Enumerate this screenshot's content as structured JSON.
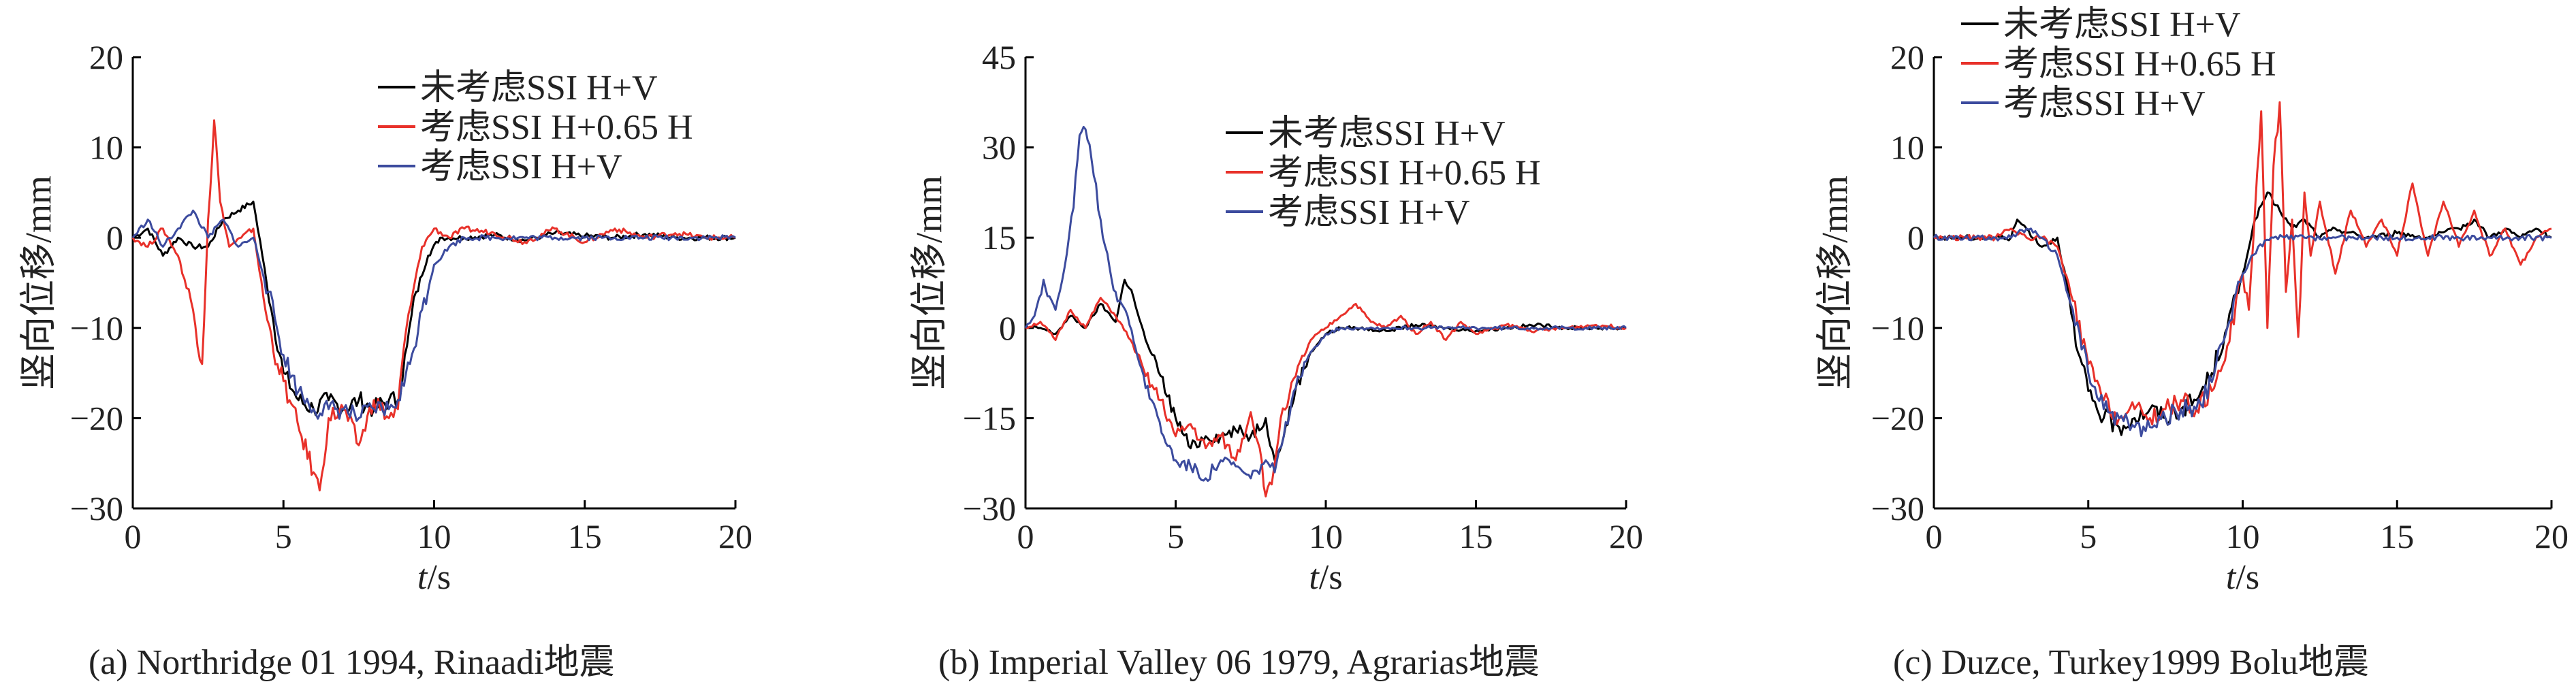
{
  "chart_data": [
    {
      "type": "line",
      "caption": "(a) Northridge 01 1994,  Rinaadi地震",
      "xlabel_italic": "t",
      "xlabel_unit": "/s",
      "ylabel": "竖向位移/mm",
      "xlim": [
        0,
        20
      ],
      "ylim": [
        -30,
        20
      ],
      "xticks": [
        "0",
        "5",
        "10",
        "15",
        "20"
      ],
      "yticks": [
        "20",
        "10",
        "0",
        "−10",
        "−20",
        "−30"
      ],
      "legend_position": "top-right",
      "grid": false,
      "series": [
        {
          "name": "未考虑SSI H+V",
          "color": "#000000",
          "x": [
            0,
            0.5,
            1.0,
            1.5,
            2.0,
            2.5,
            3.0,
            3.5,
            4.0,
            4.3,
            4.6,
            5.0,
            5.5,
            6.0,
            6.5,
            7.0,
            7.5,
            8.0,
            8.5,
            8.8,
            9.1,
            9.4,
            9.8,
            10.2,
            11,
            12,
            13,
            14,
            15,
            16,
            17,
            18,
            19,
            20
          ],
          "values": [
            0,
            1,
            -2,
            0,
            -1,
            -1,
            2,
            3,
            4,
            -2,
            -8,
            -15,
            -18,
            -19,
            -18,
            -19,
            -18,
            -19,
            -18,
            -18,
            -12,
            -6,
            -2,
            0,
            0,
            0.3,
            -0.3,
            0.5,
            0.2,
            0,
            0.4,
            0,
            0,
            0
          ]
        },
        {
          "name": "考虑SSI H+0.65 H",
          "color": "#e8312a",
          "x": [
            0,
            0.5,
            1.0,
            1.5,
            2.0,
            2.3,
            2.5,
            2.7,
            2.9,
            3.2,
            3.6,
            4.0,
            4.4,
            4.8,
            5.2,
            5.6,
            6.0,
            6.2,
            6.5,
            7.0,
            7.5,
            8.0,
            8.5,
            8.8,
            9.0,
            9.3,
            9.6,
            10.0,
            10.5,
            11,
            12,
            13,
            14,
            15,
            16,
            17,
            18,
            19,
            20
          ],
          "values": [
            0,
            -1,
            1,
            -2,
            -8,
            -14,
            2,
            13,
            4,
            -1,
            0,
            1,
            -8,
            -14,
            -18,
            -22,
            -26,
            -28,
            -20,
            -19,
            -23,
            -18,
            -20,
            -19,
            -12,
            -6,
            -1,
            1,
            0,
            1,
            0.5,
            -0.5,
            1,
            -0.5,
            1,
            0,
            0.5,
            0,
            0
          ]
        },
        {
          "name": "考虑SSI H+V",
          "color": "#3c4b9e",
          "x": [
            0,
            0.5,
            1.0,
            1.5,
            2.0,
            2.5,
            3.0,
            3.5,
            4.0,
            4.5,
            5.0,
            5.5,
            6.0,
            6.5,
            7.0,
            7.5,
            8.0,
            8.5,
            8.8,
            9.2,
            9.6,
            10.0,
            10.5,
            11,
            12,
            13,
            14,
            15,
            16,
            17,
            18,
            19,
            20
          ],
          "values": [
            0,
            2,
            -1,
            1,
            3,
            0,
            2,
            -1,
            0,
            -6,
            -13,
            -17,
            -19,
            -19,
            -19,
            -20,
            -19,
            -19,
            -18,
            -14,
            -8,
            -3,
            -1,
            0,
            0,
            0,
            0,
            0,
            0,
            0,
            0,
            0,
            0
          ]
        }
      ]
    },
    {
      "type": "line",
      "caption": "(b) Imperial Valley 06 1979, Agrarias地震",
      "xlabel_italic": "t",
      "xlabel_unit": "/s",
      "ylabel": "竖向位移/mm",
      "xlim": [
        0,
        20
      ],
      "ylim": [
        -30,
        45
      ],
      "xticks": [
        "0",
        "5",
        "10",
        "15",
        "20"
      ],
      "yticks": [
        "45",
        "30",
        "15",
        "0",
        "−15",
        "−30"
      ],
      "legend_position": "top-right",
      "grid": false,
      "series": [
        {
          "name": "未考虑SSI H+V",
          "color": "#000000",
          "x": [
            0,
            0.5,
            1.0,
            1.5,
            2.0,
            2.5,
            3.0,
            3.3,
            3.6,
            4.0,
            4.5,
            5.0,
            5.5,
            6.0,
            6.5,
            7.0,
            7.5,
            8.0,
            8.3,
            8.6,
            9.0,
            9.5,
            10.0,
            10.5,
            11,
            12,
            13,
            14,
            15,
            16,
            17,
            18,
            19,
            20
          ],
          "values": [
            0,
            0,
            -1,
            2,
            0,
            4,
            1,
            8,
            5,
            -2,
            -8,
            -15,
            -20,
            -18,
            -18,
            -17,
            -18,
            -15,
            -22,
            -18,
            -10,
            -4,
            -1,
            0,
            0,
            -0.5,
            0.5,
            0,
            -0.5,
            0,
            0.5,
            0,
            0,
            0
          ]
        },
        {
          "name": "考虑SSI H+0.65 H",
          "color": "#e8312a",
          "x": [
            0,
            0.5,
            1.0,
            1.5,
            2.0,
            2.5,
            3.0,
            3.5,
            4.0,
            4.5,
            5.0,
            5.5,
            6.0,
            6.5,
            7.0,
            7.5,
            7.8,
            8.0,
            8.2,
            8.5,
            9.0,
            9.5,
            10.0,
            10.5,
            11.0,
            11.5,
            12,
            12.5,
            13,
            13.5,
            14,
            14.5,
            15,
            16,
            17,
            18,
            19,
            20
          ],
          "values": [
            0,
            1,
            -2,
            3,
            0,
            5,
            2,
            -2,
            -8,
            -12,
            -18,
            -16,
            -20,
            -18,
            -22,
            -14,
            -20,
            -28,
            -26,
            -15,
            -8,
            -2,
            0,
            2,
            4,
            1,
            0,
            2,
            -1,
            1,
            -2,
            1,
            -1,
            0.5,
            -0.5,
            0,
            0.5,
            0
          ]
        },
        {
          "name": "考虑SSI H+V",
          "color": "#3c4b9e",
          "x": [
            0,
            0.3,
            0.6,
            1.0,
            1.3,
            1.6,
            1.8,
            2.0,
            2.2,
            2.5,
            2.8,
            3.0,
            3.4,
            3.8,
            4.2,
            4.6,
            5.0,
            5.5,
            6.0,
            6.5,
            7.0,
            7.5,
            8.0,
            8.3,
            8.6,
            9.0,
            9.5,
            10.0,
            10.5,
            11,
            12,
            13,
            14,
            15,
            16,
            17,
            18,
            19,
            20
          ],
          "values": [
            0,
            2,
            8,
            3,
            10,
            20,
            32,
            33,
            28,
            18,
            10,
            6,
            2,
            -6,
            -12,
            -18,
            -22,
            -23,
            -25,
            -22,
            -23,
            -25,
            -22,
            -24,
            -18,
            -10,
            -4,
            -1,
            0,
            0,
            0,
            0,
            0,
            0,
            0,
            0,
            0,
            0,
            0
          ]
        }
      ]
    },
    {
      "type": "line",
      "caption": "(c) Duzce, Turkey1999 Bolu地震",
      "xlabel_italic": "t",
      "xlabel_unit": "/s",
      "ylabel": "竖向位移/mm",
      "xlim": [
        0,
        20
      ],
      "ylim": [
        -30,
        20
      ],
      "xticks": [
        "0",
        "5",
        "10",
        "15",
        "20"
      ],
      "yticks": [
        "20",
        "10",
        "0",
        "−10",
        "−20",
        "−30"
      ],
      "legend_position": "top-left",
      "grid": false,
      "series": [
        {
          "name": "未考虑SSI H+V",
          "color": "#000000",
          "x": [
            0,
            1,
            2,
            2.5,
            2.7,
            3.0,
            3.5,
            4.0,
            4.3,
            4.6,
            5.0,
            5.5,
            6.0,
            6.5,
            7.0,
            7.5,
            8.0,
            8.5,
            9.0,
            9.5,
            10.0,
            10.4,
            10.8,
            11.2,
            11.6,
            12.0,
            12.5,
            13,
            14,
            15,
            16,
            17,
            17.5,
            18,
            18.5,
            19,
            19.5,
            20
          ],
          "values": [
            0,
            0,
            0,
            0,
            2,
            1,
            -1,
            0,
            -5,
            -12,
            -17,
            -20,
            -21,
            -20,
            -19,
            -20,
            -19,
            -18,
            -15,
            -10,
            -4,
            2,
            5,
            3,
            1,
            2,
            0,
            1,
            0,
            0.5,
            0,
            1,
            2,
            0,
            1,
            0,
            1,
            0
          ]
        },
        {
          "name": "考虑SSI H+0.65 H",
          "color": "#e8312a",
          "x": [
            0,
            1,
            2,
            2.5,
            3.0,
            3.5,
            4.0,
            4.5,
            5.0,
            5.5,
            6.0,
            6.5,
            7.0,
            7.5,
            8.0,
            8.5,
            9.0,
            9.5,
            10.0,
            10.2,
            10.4,
            10.6,
            10.8,
            11.0,
            11.2,
            11.4,
            11.6,
            11.8,
            12.0,
            12.2,
            12.5,
            13.0,
            13.5,
            14.0,
            14.5,
            15.0,
            15.5,
            16.0,
            16.5,
            17.0,
            17.5,
            18.0,
            18.5,
            19.0,
            19.5,
            20.0
          ],
          "values": [
            0,
            0,
            0,
            1,
            0,
            0,
            -1,
            -7,
            -14,
            -18,
            -20,
            -19,
            -20,
            -19,
            -18,
            -19,
            -17,
            -12,
            -4,
            -8,
            3,
            14,
            -10,
            8,
            15,
            -6,
            2,
            -11,
            5,
            -2,
            4,
            -4,
            3,
            -1,
            2,
            -2,
            6,
            -2,
            4,
            -1,
            3,
            -2,
            1,
            -3,
            0,
            1
          ]
        },
        {
          "name": "考虑SSI H+V",
          "color": "#3c4b9e",
          "x": [
            0,
            1,
            2,
            2.5,
            3.0,
            3.5,
            4.0,
            4.5,
            5.0,
            5.5,
            6.0,
            6.5,
            7.0,
            7.5,
            8.0,
            8.5,
            9.0,
            9.5,
            10.0,
            10.5,
            11,
            12,
            13,
            14,
            15,
            16,
            17,
            18,
            19,
            20
          ],
          "values": [
            0,
            0,
            0,
            0,
            1,
            0,
            -2,
            -8,
            -15,
            -19,
            -20,
            -21,
            -21,
            -20,
            -19,
            -19,
            -16,
            -10,
            -4,
            -1,
            0,
            0,
            0,
            0,
            0,
            0,
            0,
            0,
            0,
            0
          ]
        }
      ]
    }
  ]
}
